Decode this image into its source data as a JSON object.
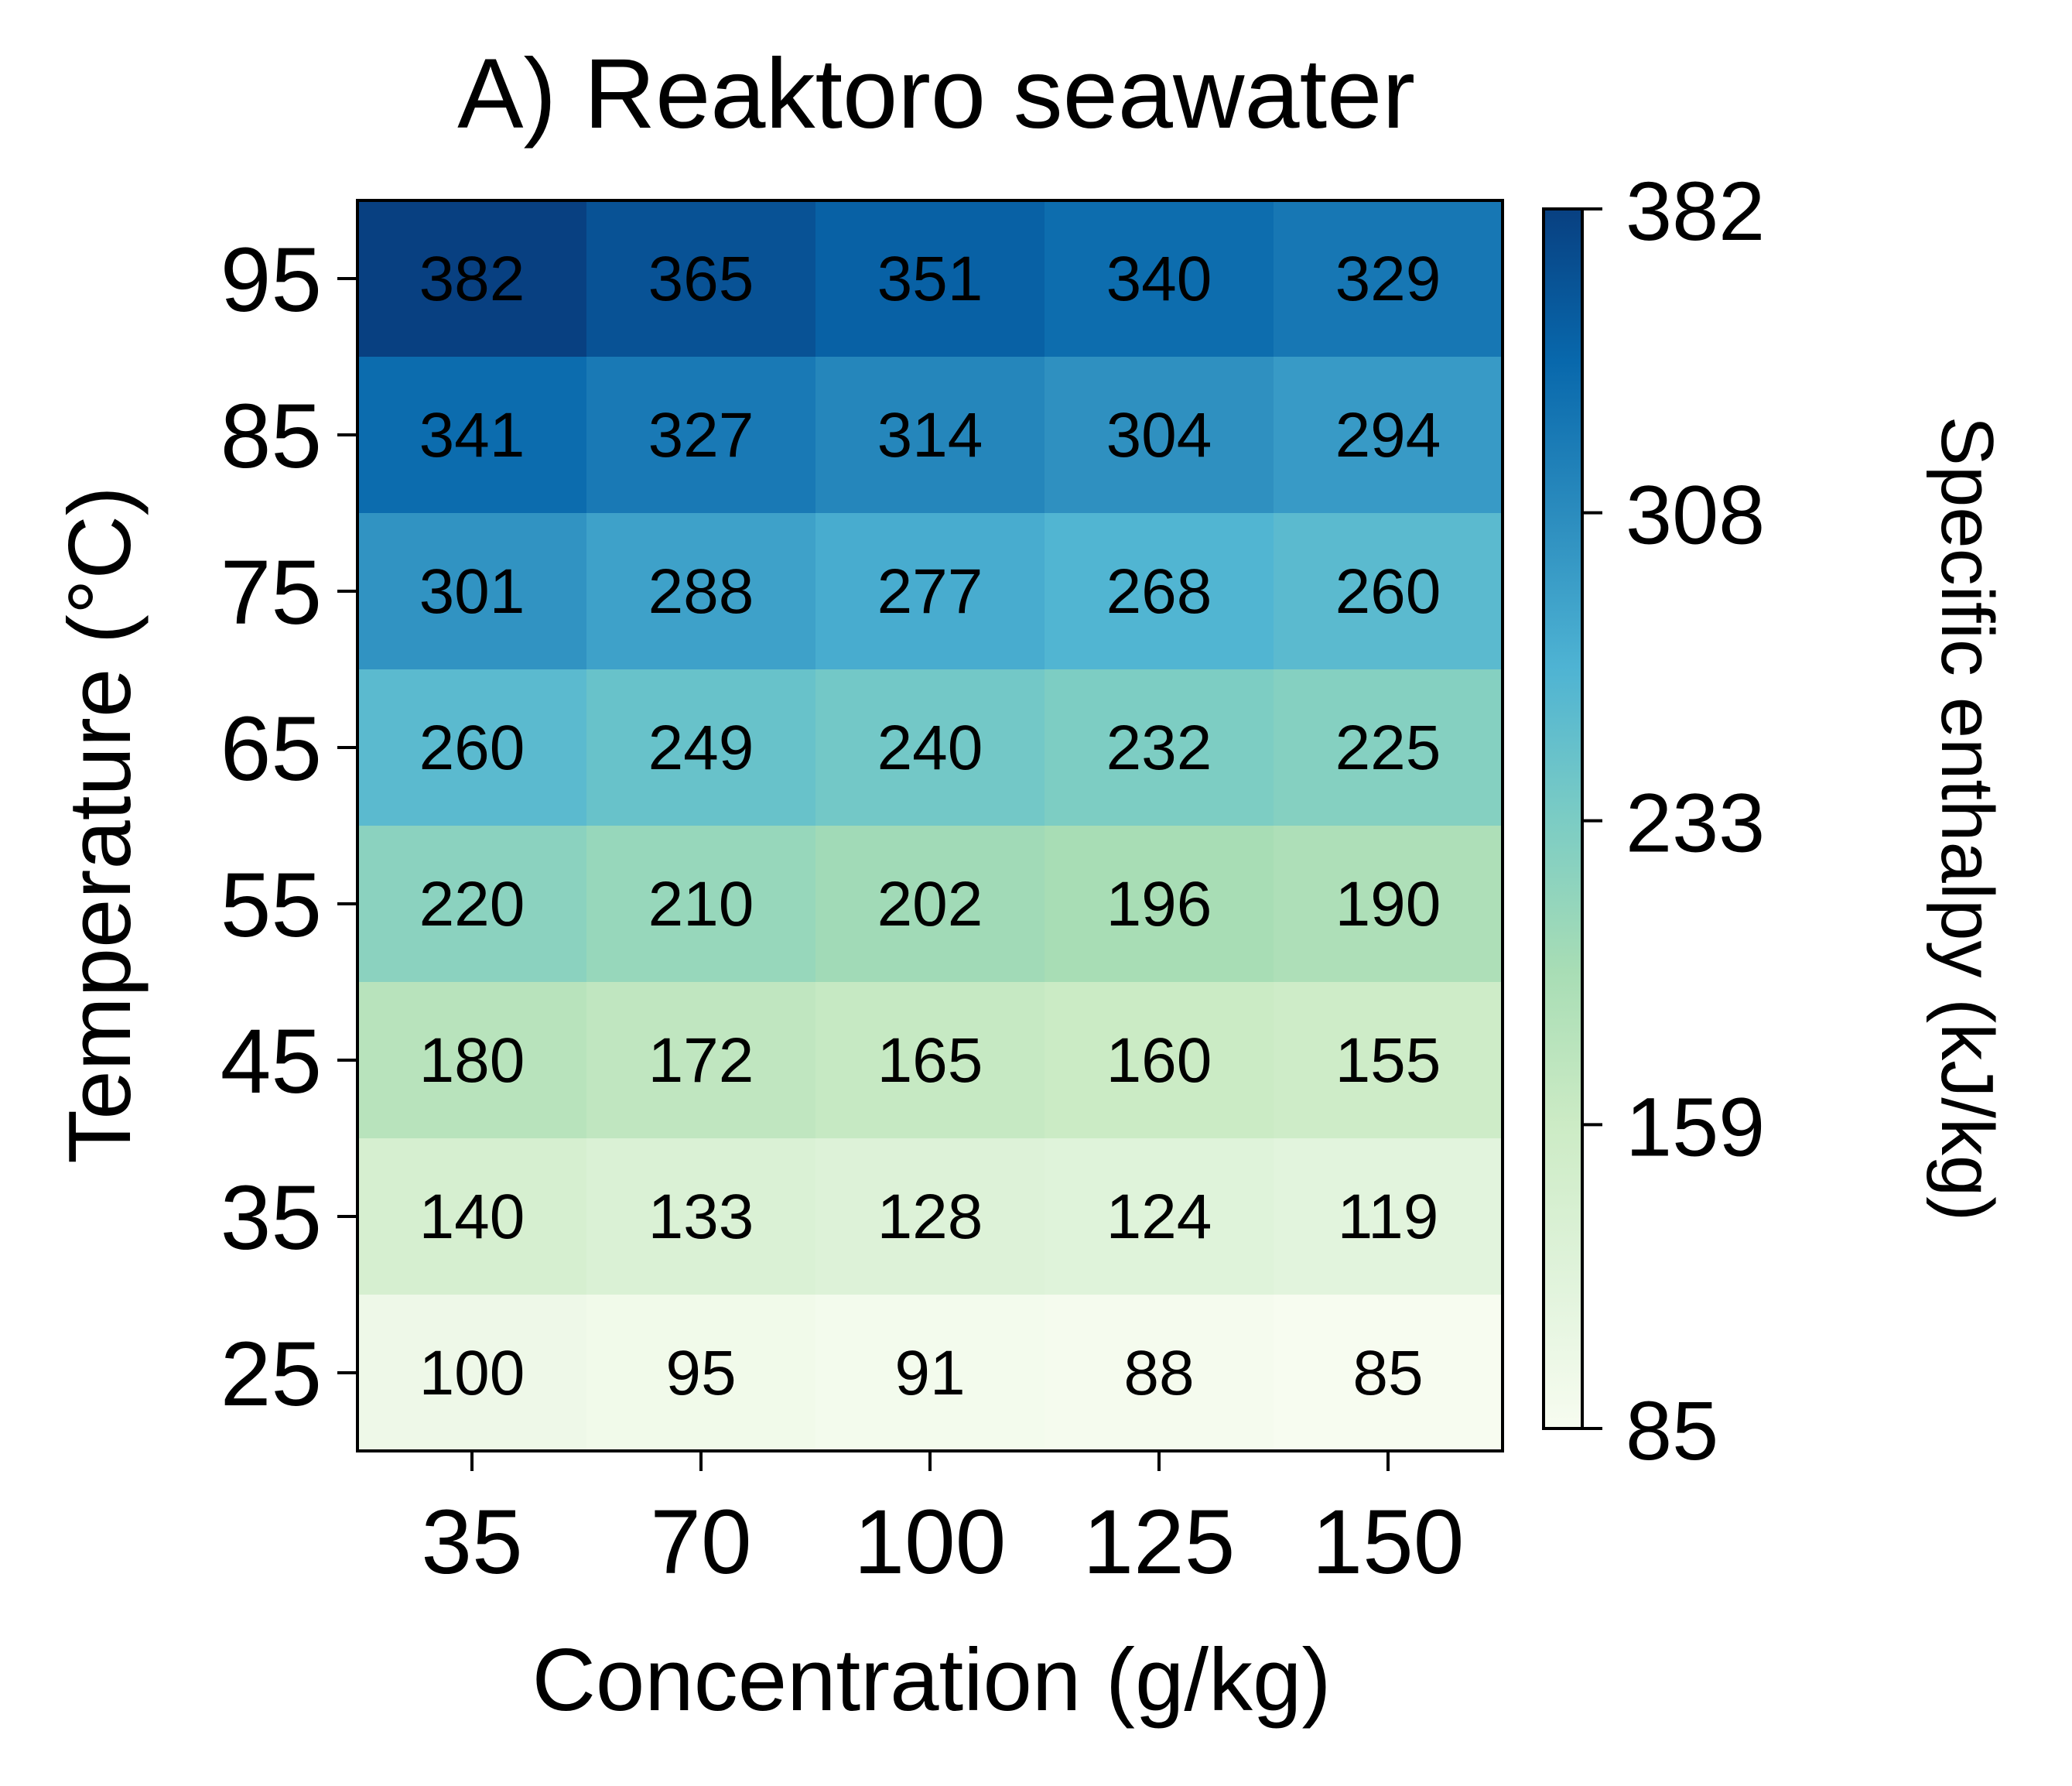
{
  "chart_data": {
    "type": "heatmap",
    "title": "A) Reaktoro seawater",
    "xlabel": "Concentration (g/kg)",
    "ylabel": "Temperature (°C)",
    "colorbar_label": "Specific enthalpy (kJ/kg)",
    "x_categories": [
      "35",
      "70",
      "100",
      "125",
      "150"
    ],
    "y_categories": [
      "95",
      "85",
      "75",
      "65",
      "55",
      "45",
      "35",
      "25"
    ],
    "values": [
      [
        382,
        365,
        351,
        340,
        329
      ],
      [
        341,
        327,
        314,
        304,
        294
      ],
      [
        301,
        288,
        277,
        268,
        260
      ],
      [
        260,
        249,
        240,
        232,
        225
      ],
      [
        220,
        210,
        202,
        196,
        190
      ],
      [
        180,
        172,
        165,
        160,
        155
      ],
      [
        140,
        133,
        128,
        124,
        119
      ],
      [
        100,
        95,
        91,
        88,
        85
      ]
    ],
    "colorbar_ticks": [
      85,
      159,
      233,
      308,
      382
    ],
    "colorbar_tick_labels": [
      "85",
      "159",
      "233",
      "308",
      "382"
    ],
    "vmin": 85,
    "vmax": 382,
    "colormap": "GnBu",
    "colormap_stops": [
      "#f7fcf0",
      "#e0f3db",
      "#ccebc5",
      "#a8ddb5",
      "#7bccc4",
      "#4eb3d3",
      "#2b8cbe",
      "#0868ac",
      "#084081"
    ]
  }
}
